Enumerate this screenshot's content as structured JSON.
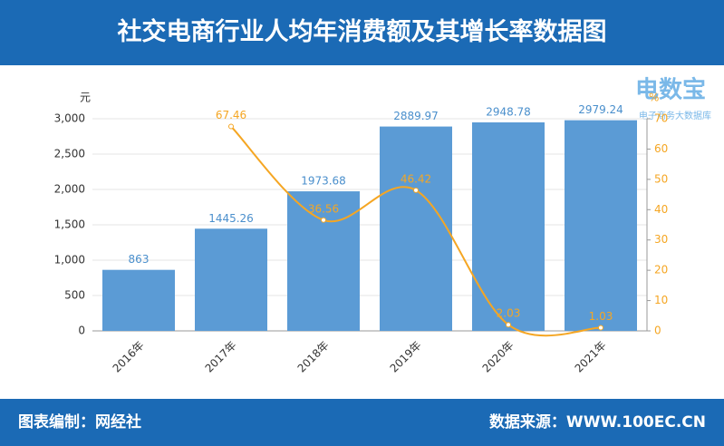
{
  "header": {
    "title": "社交电商行业人均年消费额及其增长率数据图"
  },
  "logo": {
    "name": "电数宝",
    "subtitle": "电子商务大数据库"
  },
  "footer": {
    "left": "图表编制：网经社",
    "right": "数据来源：WWW.100EC.CN"
  },
  "chart_data": {
    "type": "bar",
    "y_label": "元",
    "y2_label": "%",
    "categories": [
      "2016年",
      "2017年",
      "2018年",
      "2019年",
      "2020年",
      "2021年"
    ],
    "series": [
      {
        "type": "bar",
        "color": "#5b9bd5",
        "values": [
          863,
          1445.26,
          1973.68,
          2889.97,
          2948.78,
          2979.24
        ]
      },
      {
        "type": "line",
        "axis": "y2",
        "color": "#f5a623",
        "values": [
          null,
          67.46,
          36.56,
          46.42,
          2.03,
          1.03
        ]
      }
    ],
    "ylim": [
      0,
      3000
    ],
    "yticks": [
      0,
      500,
      {
        "value": 1000,
        "label": "1,000"
      },
      {
        "value": 1500,
        "label": "1,500"
      },
      {
        "value": 2000,
        "label": "2,000"
      },
      {
        "value": 2500,
        "label": "2,500"
      },
      {
        "value": 3000,
        "label": "3,000"
      }
    ],
    "y2lim": [
      0,
      70
    ],
    "y2ticks": [
      0,
      10,
      20,
      30,
      40,
      50,
      60,
      70
    ],
    "grid": true
  }
}
